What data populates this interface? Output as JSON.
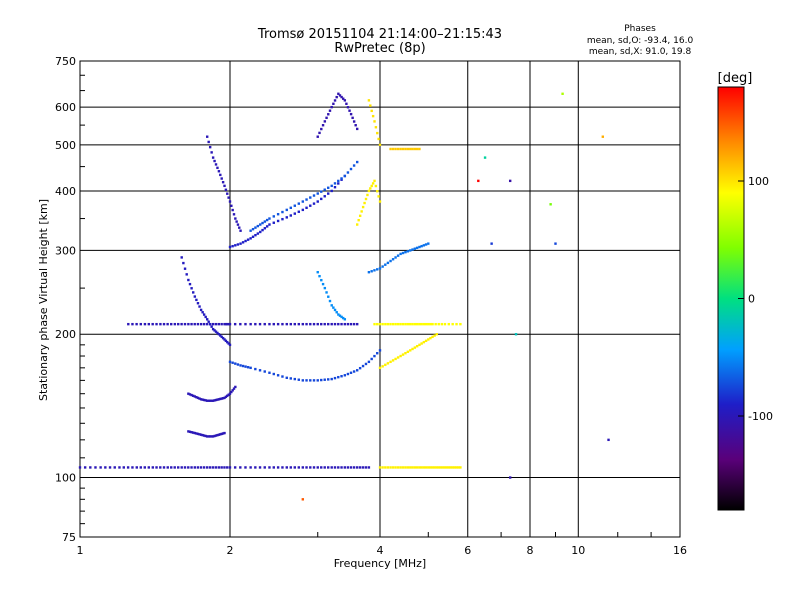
{
  "chart_data": {
    "type": "scatter",
    "title": "Tromsø 20151104 21:14:00–21:15:43",
    "subtitle": "RwPretec (8p)",
    "xlabel": "Frequency [MHz]",
    "ylabel": "Stationary phase Virtual Height [km]",
    "x_scale": "log",
    "y_scale": "log",
    "xlim": [
      1,
      16
    ],
    "ylim": [
      75,
      750
    ],
    "x_ticks": [
      1,
      2,
      4,
      6,
      8,
      10,
      16
    ],
    "y_ticks": [
      75,
      100,
      200,
      300,
      400,
      500,
      600,
      750
    ],
    "grid": true,
    "phase_box": {
      "title": "Phases",
      "line1": "mean, sd,O: -93.4, 16.0",
      "line2": "mean, sd,X:  91.0, 19.8"
    },
    "colorbar": {
      "label": "[deg]",
      "range": [
        -180,
        180
      ],
      "ticks": [
        {
          "value": 100,
          "label": "100"
        },
        {
          "value": 0,
          "label": "0"
        },
        {
          "value": -100,
          "label": "-100"
        }
      ]
    },
    "traces": [
      {
        "f": [
          1.0,
          1.1,
          1.2,
          1.3,
          1.4,
          1.5,
          1.6,
          1.7,
          1.8,
          1.9,
          2.0,
          2.2,
          2.4,
          2.6,
          2.8,
          3.0,
          3.2,
          3.4,
          3.6,
          3.8
        ],
        "h": 105,
        "phase": -100
      },
      {
        "f": [
          4.0,
          4.2,
          4.4,
          4.6,
          4.8,
          5.0,
          5.2,
          5.4,
          5.6,
          5.8
        ],
        "h": 105,
        "phase": 95
      },
      {
        "f": [
          1.25,
          1.35,
          1.45,
          1.55,
          1.65,
          1.75,
          1.85,
          1.95,
          2.0,
          2.2,
          2.4,
          2.6,
          2.8,
          3.0,
          3.2,
          3.4,
          3.6
        ],
        "h": 210,
        "phase": -100
      },
      {
        "f": [
          3.9,
          4.1,
          4.3,
          4.5,
          4.7,
          4.9,
          5.1,
          5.4,
          5.8
        ],
        "h": 210,
        "phase": 90
      },
      {
        "f": [
          1.6,
          1.65,
          1.7,
          1.75,
          1.8,
          1.85,
          1.9,
          1.95,
          2.0
        ],
        "h": [
          290,
          260,
          240,
          225,
          215,
          205,
          200,
          195,
          190
        ],
        "phase": -95
      },
      {
        "f": [
          1.65,
          1.7,
          1.75,
          1.8,
          1.85,
          1.9,
          1.95,
          2.0,
          2.05
        ],
        "h": [
          150,
          148,
          146,
          145,
          145,
          146,
          147,
          150,
          155
        ],
        "phase": -100
      },
      {
        "f": [
          1.65,
          1.7,
          1.75,
          1.8,
          1.85,
          1.9,
          1.95
        ],
        "h": [
          125,
          124,
          123,
          122,
          122,
          123,
          124
        ],
        "phase": -100
      },
      {
        "f": [
          2.0,
          2.1,
          2.2,
          2.4,
          2.6,
          2.8,
          3.0,
          3.2,
          3.4,
          3.6,
          3.8,
          4.0
        ],
        "h": [
          175,
          172,
          170,
          166,
          162,
          160,
          160,
          161,
          164,
          168,
          175,
          185
        ],
        "phase": -75
      },
      {
        "f": [
          4.0,
          4.2,
          4.4,
          4.6,
          4.8,
          5.0,
          5.2
        ],
        "h": [
          170,
          175,
          180,
          185,
          190,
          195,
          200
        ],
        "phase": 95
      },
      {
        "f": [
          1.8,
          1.85,
          1.9,
          1.95,
          2.0,
          2.05,
          2.1
        ],
        "h": [
          520,
          470,
          440,
          410,
          380,
          350,
          330
        ],
        "phase": -100
      },
      {
        "f": [
          2.0,
          2.1,
          2.2,
          2.3,
          2.4,
          2.6,
          2.8,
          3.0,
          3.2,
          3.4
        ],
        "h": [
          305,
          310,
          318,
          328,
          340,
          352,
          365,
          380,
          400,
          430
        ],
        "phase": -90
      },
      {
        "f": [
          2.2,
          2.3,
          2.4,
          2.6,
          2.8,
          3.0,
          3.2,
          3.4,
          3.6
        ],
        "h": [
          330,
          340,
          350,
          365,
          380,
          395,
          410,
          430,
          460
        ],
        "phase": -70
      },
      {
        "f": [
          3.0,
          3.1,
          3.2,
          3.3,
          3.4,
          3.5,
          3.6
        ],
        "h": [
          520,
          560,
          600,
          640,
          620,
          580,
          540
        ],
        "phase": -105
      },
      {
        "f": [
          3.6,
          3.7,
          3.8,
          3.9,
          4.0
        ],
        "h": [
          340,
          370,
          400,
          420,
          380
        ],
        "phase": 95
      },
      {
        "f": [
          3.8,
          3.9,
          4.0
        ],
        "h": [
          620,
          560,
          500
        ],
        "phase": 100
      },
      {
        "f": [
          4.2,
          4.4,
          4.6,
          4.8
        ],
        "h": [
          490,
          490,
          490,
          490
        ],
        "phase": 110
      },
      {
        "f": [
          3.0,
          3.1,
          3.2,
          3.3,
          3.4
        ],
        "h": [
          270,
          250,
          230,
          220,
          215
        ],
        "phase": -50
      },
      {
        "f": [
          3.8,
          4.0,
          4.2,
          4.4,
          4.6,
          4.8,
          5.0
        ],
        "h": [
          270,
          275,
          285,
          295,
          300,
          305,
          310
        ],
        "phase": -60
      }
    ],
    "scatter": [
      {
        "f": 6.5,
        "h": 470,
        "phase": -10
      },
      {
        "f": 7.3,
        "h": 420,
        "phase": -110
      },
      {
        "f": 7.5,
        "h": 200,
        "phase": -20
      },
      {
        "f": 7.3,
        "h": 100,
        "phase": -105
      },
      {
        "f": 8.8,
        "h": 375,
        "phase": 40
      },
      {
        "f": 9.3,
        "h": 640,
        "phase": 60
      },
      {
        "f": 11.2,
        "h": 520,
        "phase": 120
      },
      {
        "f": 11.5,
        "h": 120,
        "phase": -100
      },
      {
        "f": 6.7,
        "h": 310,
        "phase": -80
      },
      {
        "f": 9.0,
        "h": 310,
        "phase": -75
      },
      {
        "f": 2.8,
        "h": 90,
        "phase": 150
      },
      {
        "f": 6.3,
        "h": 420,
        "phase": 180
      }
    ]
  }
}
